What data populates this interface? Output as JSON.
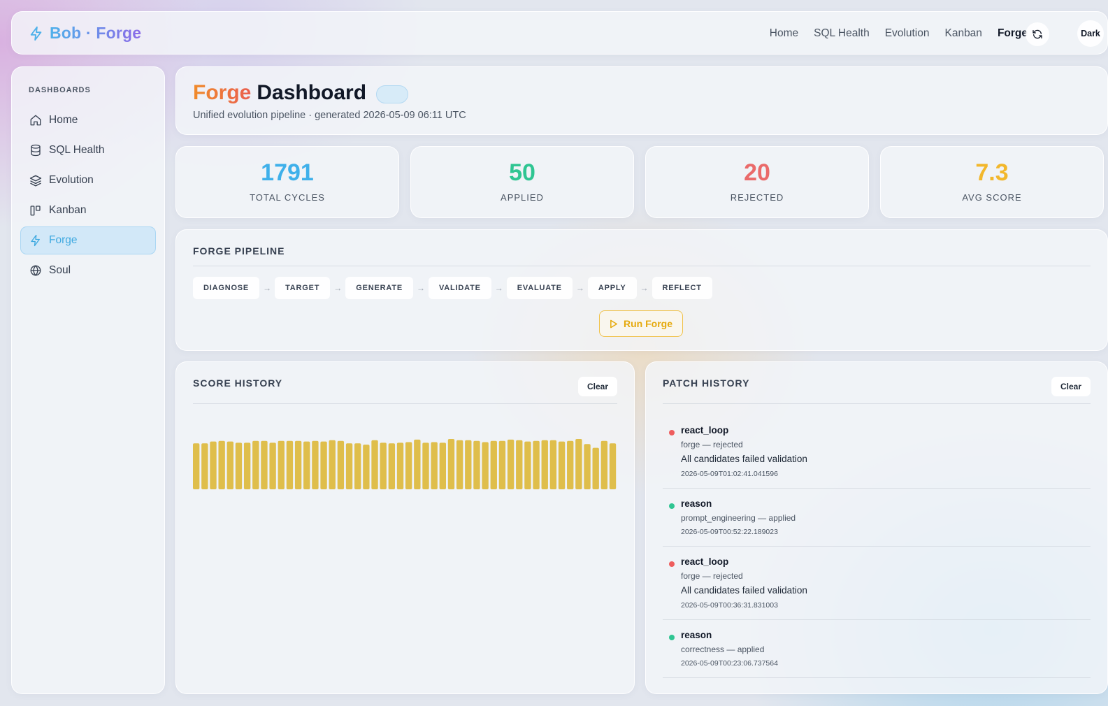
{
  "brand": {
    "name": "Bob · Forge"
  },
  "nav": {
    "items": [
      "Home",
      "SQL Health",
      "Evolution",
      "Kanban",
      "Forge"
    ],
    "active": "Forge",
    "theme_label": "Dark"
  },
  "sidebar": {
    "heading": "DASHBOARDS",
    "items": [
      {
        "label": "Home",
        "icon": "home-icon"
      },
      {
        "label": "SQL Health",
        "icon": "database-icon"
      },
      {
        "label": "Evolution",
        "icon": "layers-icon"
      },
      {
        "label": "Kanban",
        "icon": "kanban-icon"
      },
      {
        "label": "Forge",
        "icon": "bolt-icon",
        "active": true
      },
      {
        "label": "Soul",
        "icon": "globe-icon"
      }
    ]
  },
  "page": {
    "title_accent": "Forge",
    "title_rest": "Dashboard",
    "subtitle": "Unified evolution pipeline · generated 2026-05-09 06:11 UTC"
  },
  "stats": [
    {
      "value": "1791",
      "label": "TOTAL CYCLES",
      "color": "#3fb0ea"
    },
    {
      "value": "50",
      "label": "APPLIED",
      "color": "#2fc592"
    },
    {
      "value": "20",
      "label": "REJECTED",
      "color": "#ea6a6a"
    },
    {
      "value": "7.3",
      "label": "AVG SCORE",
      "color": "#f2b72c"
    }
  ],
  "pipeline": {
    "title": "FORGE PIPELINE",
    "stages": [
      "DIAGNOSE",
      "TARGET",
      "GENERATE",
      "VALIDATE",
      "EVALUATE",
      "APPLY",
      "REFLECT"
    ],
    "arrow": "→",
    "run_label": "Run Forge"
  },
  "score_history": {
    "title": "SCORE HISTORY",
    "clear_label": "Clear",
    "bar_color": "#dfbe4b",
    "values": [
      7.3,
      7.3,
      7.6,
      7.7,
      7.6,
      7.4,
      7.4,
      7.7,
      7.7,
      7.4,
      7.7,
      7.7,
      7.7,
      7.6,
      7.7,
      7.6,
      7.8,
      7.7,
      7.3,
      7.3,
      7.1,
      7.8,
      7.4,
      7.3,
      7.4,
      7.5,
      7.9,
      7.4,
      7.5,
      7.4,
      8.0,
      7.8,
      7.8,
      7.7,
      7.5,
      7.7,
      7.7,
      7.9,
      7.8,
      7.6,
      7.7,
      7.8,
      7.8,
      7.6,
      7.7,
      8.0,
      7.2,
      6.6,
      7.7,
      7.3
    ]
  },
  "patch_history": {
    "title": "PATCH HISTORY",
    "clear_label": "Clear",
    "items": [
      {
        "name": "react_loop",
        "meta": "forge — rejected",
        "message": "All candidates failed validation",
        "timestamp": "2026-05-09T01:02:41.041596",
        "status": "rejected"
      },
      {
        "name": "reason",
        "meta": "prompt_engineering — applied",
        "message": "",
        "timestamp": "2026-05-09T00:52:22.189023",
        "status": "applied"
      },
      {
        "name": "react_loop",
        "meta": "forge — rejected",
        "message": "All candidates failed validation",
        "timestamp": "2026-05-09T00:36:31.831003",
        "status": "rejected"
      },
      {
        "name": "reason",
        "meta": "correctness — applied",
        "message": "",
        "timestamp": "2026-05-09T00:23:06.737564",
        "status": "applied"
      }
    ],
    "status_colors": {
      "rejected": "#ee5d5d",
      "applied": "#2fc592"
    }
  }
}
